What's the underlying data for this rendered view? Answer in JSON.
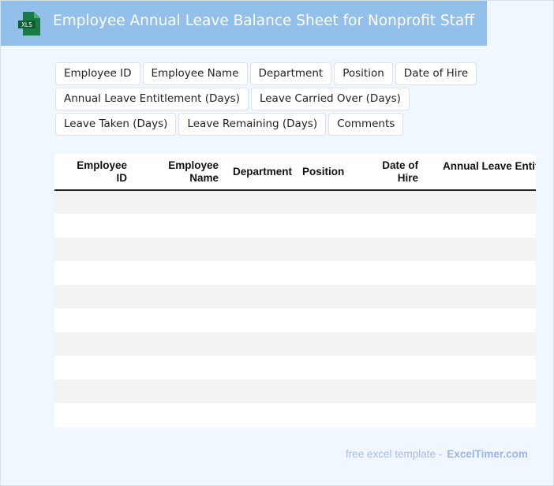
{
  "header": {
    "title": "Employee Annual Leave Balance Sheet for Nonprofit Staff",
    "icon": "xls-file-icon",
    "icon_label": "XLS"
  },
  "chips": [
    "Employee ID",
    "Employee Name",
    "Department",
    "Position",
    "Date of Hire",
    "Annual Leave Entitlement (Days)",
    "Leave Carried Over (Days)",
    "Leave Taken (Days)",
    "Leave Remaining (Days)",
    "Comments"
  ],
  "table": {
    "columns": [
      "Employee ID",
      "Employee Name",
      "Department",
      "Position",
      "Date of Hire",
      "Annual Leave Entitlement (Days)"
    ]
  },
  "footer": {
    "text": "free excel template -",
    "brand": "ExcelTimer.com"
  }
}
